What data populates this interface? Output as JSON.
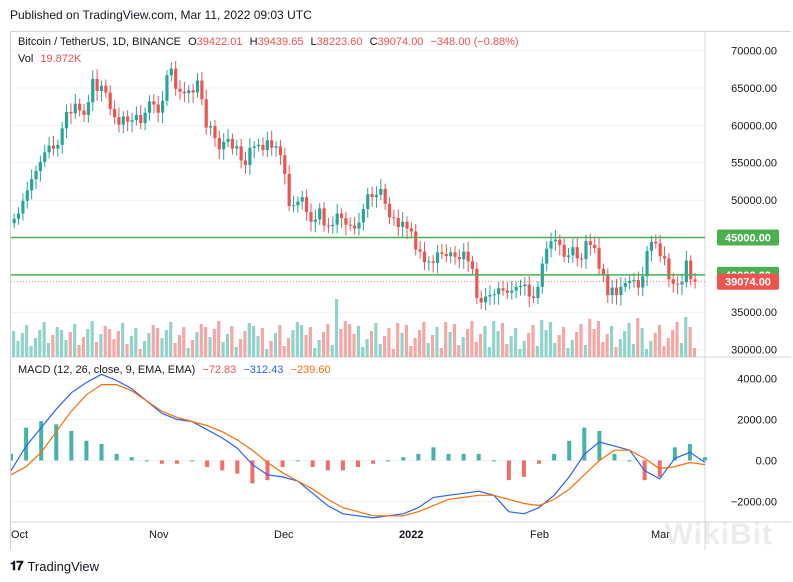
{
  "published": "Published on TradingView.com, Mar 11, 2022 09:03 UTC",
  "legend": {
    "symbol": "Bitcoin / TetherUS, 1D, BINANCE",
    "open_label": "O",
    "open": "39422.01",
    "high_label": "H",
    "high": "39439.65",
    "low_label": "L",
    "low": "38223.60",
    "close_label": "C",
    "close": "39074.00",
    "change": "−348.00 (−0.88%)",
    "vol_label": "Vol",
    "vol": "19.872K"
  },
  "macd_legend": {
    "title": "MACD (12, 26, close, 9, EMA, EMA)",
    "hist": "−72.83",
    "macd": "−312.43",
    "signal": "−239.60"
  },
  "footer": {
    "brand": "TradingView"
  },
  "watermark": "WikiBit",
  "colors": {
    "up": "#26a69a",
    "down": "#ef5350",
    "vol_up": "#8fd3c9",
    "vol_down": "#f4a7a5",
    "level": "#4caf50",
    "macd": "#2962ff",
    "signal": "#ff6d00",
    "grid": "#e0e3eb"
  },
  "chart_data": [
    {
      "type": "candlestick",
      "title": "Bitcoin / TetherUS, 1D, BINANCE",
      "x_tick_labels": [
        "Oct",
        "Nov",
        "Dec",
        "2022",
        "Feb",
        "Mar"
      ],
      "y_tick_labels": [
        "70000.00",
        "65000.00",
        "60000.00",
        "55000.00",
        "50000.00",
        "35000.00",
        "30000.00"
      ],
      "ylim": [
        29000,
        72500
      ],
      "levels": [
        {
          "value": 45000,
          "label": "45000.00"
        },
        {
          "value": 40000,
          "label": "40000.00"
        }
      ],
      "last_price": {
        "value": 39074,
        "label": "39074.00"
      },
      "close_approx": [
        47500,
        48200,
        49900,
        51300,
        52800,
        53900,
        55100,
        56400,
        57300,
        56900,
        57400,
        59600,
        61800,
        61600,
        62900,
        62000,
        61400,
        63100,
        66200,
        64600,
        65300,
        64400,
        62200,
        61100,
        60100,
        61200,
        60500,
        60700,
        61400,
        60300,
        61700,
        63200,
        62800,
        61700,
        63300,
        66700,
        67600,
        64900,
        64500,
        64300,
        64700,
        64400,
        66000,
        63500,
        59700,
        59900,
        58300,
        56800,
        57800,
        58200,
        56900,
        57200,
        55300,
        54700,
        57000,
        57200,
        57400,
        56700,
        58000,
        57000,
        57200,
        56000,
        53500,
        49200,
        49300,
        49800,
        50400,
        48400,
        47100,
        47400,
        48900,
        46600,
        46500,
        46700,
        48200,
        47600,
        46700,
        46600,
        46200,
        47000,
        48800,
        50800,
        50400,
        50700,
        51500,
        49500,
        47700,
        47600,
        46400,
        47100,
        46200,
        45800,
        43400,
        43100,
        41700,
        41800,
        41600,
        43000,
        42800,
        42500,
        43000,
        42400,
        42100,
        43100,
        41800,
        40800,
        36900,
        36300,
        37100,
        37300,
        37400,
        38200,
        37900,
        37600,
        37900,
        38400,
        38500,
        38700,
        37100,
        36900,
        38400,
        41500,
        43500,
        44500,
        44700,
        44000,
        42400,
        42600,
        43700,
        42200,
        42100,
        44500,
        44000,
        43600,
        40800,
        40000,
        37300,
        38300,
        37300,
        38400,
        38900,
        39200,
        39300,
        38300,
        39800,
        43200,
        44400,
        44200,
        42500,
        42200,
        39400,
        38800,
        38700,
        39000,
        41900,
        39400,
        39100
      ]
    },
    {
      "type": "bar",
      "title": "Vol",
      "value_label": "19.872K"
    },
    {
      "type": "line",
      "title": "MACD (12, 26, close, 9, EMA, EMA)",
      "y_tick_labels": [
        "4000.00",
        "2000.00",
        "0.00",
        "−2000.00"
      ],
      "ylim": [
        -3000,
        4800
      ],
      "series": [
        {
          "name": "MACD",
          "values": [
            -500,
            700,
            1600,
            2500,
            3300,
            3800,
            4200,
            3900,
            3500,
            2900,
            2300,
            2000,
            1900,
            1500,
            1100,
            600,
            -200,
            -700,
            -800,
            -1000,
            -1600,
            -2200,
            -2600,
            -2700,
            -2800,
            -2700,
            -2600,
            -2300,
            -1800,
            -1700,
            -1600,
            -1500,
            -1700,
            -2500,
            -2600,
            -2300,
            -1700,
            -800,
            300,
            900,
            700,
            500,
            -500,
            -900,
            100,
            400,
            -100
          ]
        },
        {
          "name": "Signal",
          "values": [
            -700,
            -300,
            400,
            1400,
            2400,
            3200,
            3700,
            3700,
            3400,
            2900,
            2400,
            2100,
            1900,
            1700,
            1400,
            1000,
            500,
            -100,
            -600,
            -1000,
            -1400,
            -1900,
            -2300,
            -2500,
            -2700,
            -2700,
            -2700,
            -2500,
            -2200,
            -1900,
            -1800,
            -1700,
            -1700,
            -1900,
            -2100,
            -2200,
            -1900,
            -1400,
            -700,
            0,
            500,
            500,
            100,
            -400,
            -300,
            -100,
            -200
          ]
        }
      ]
    }
  ]
}
